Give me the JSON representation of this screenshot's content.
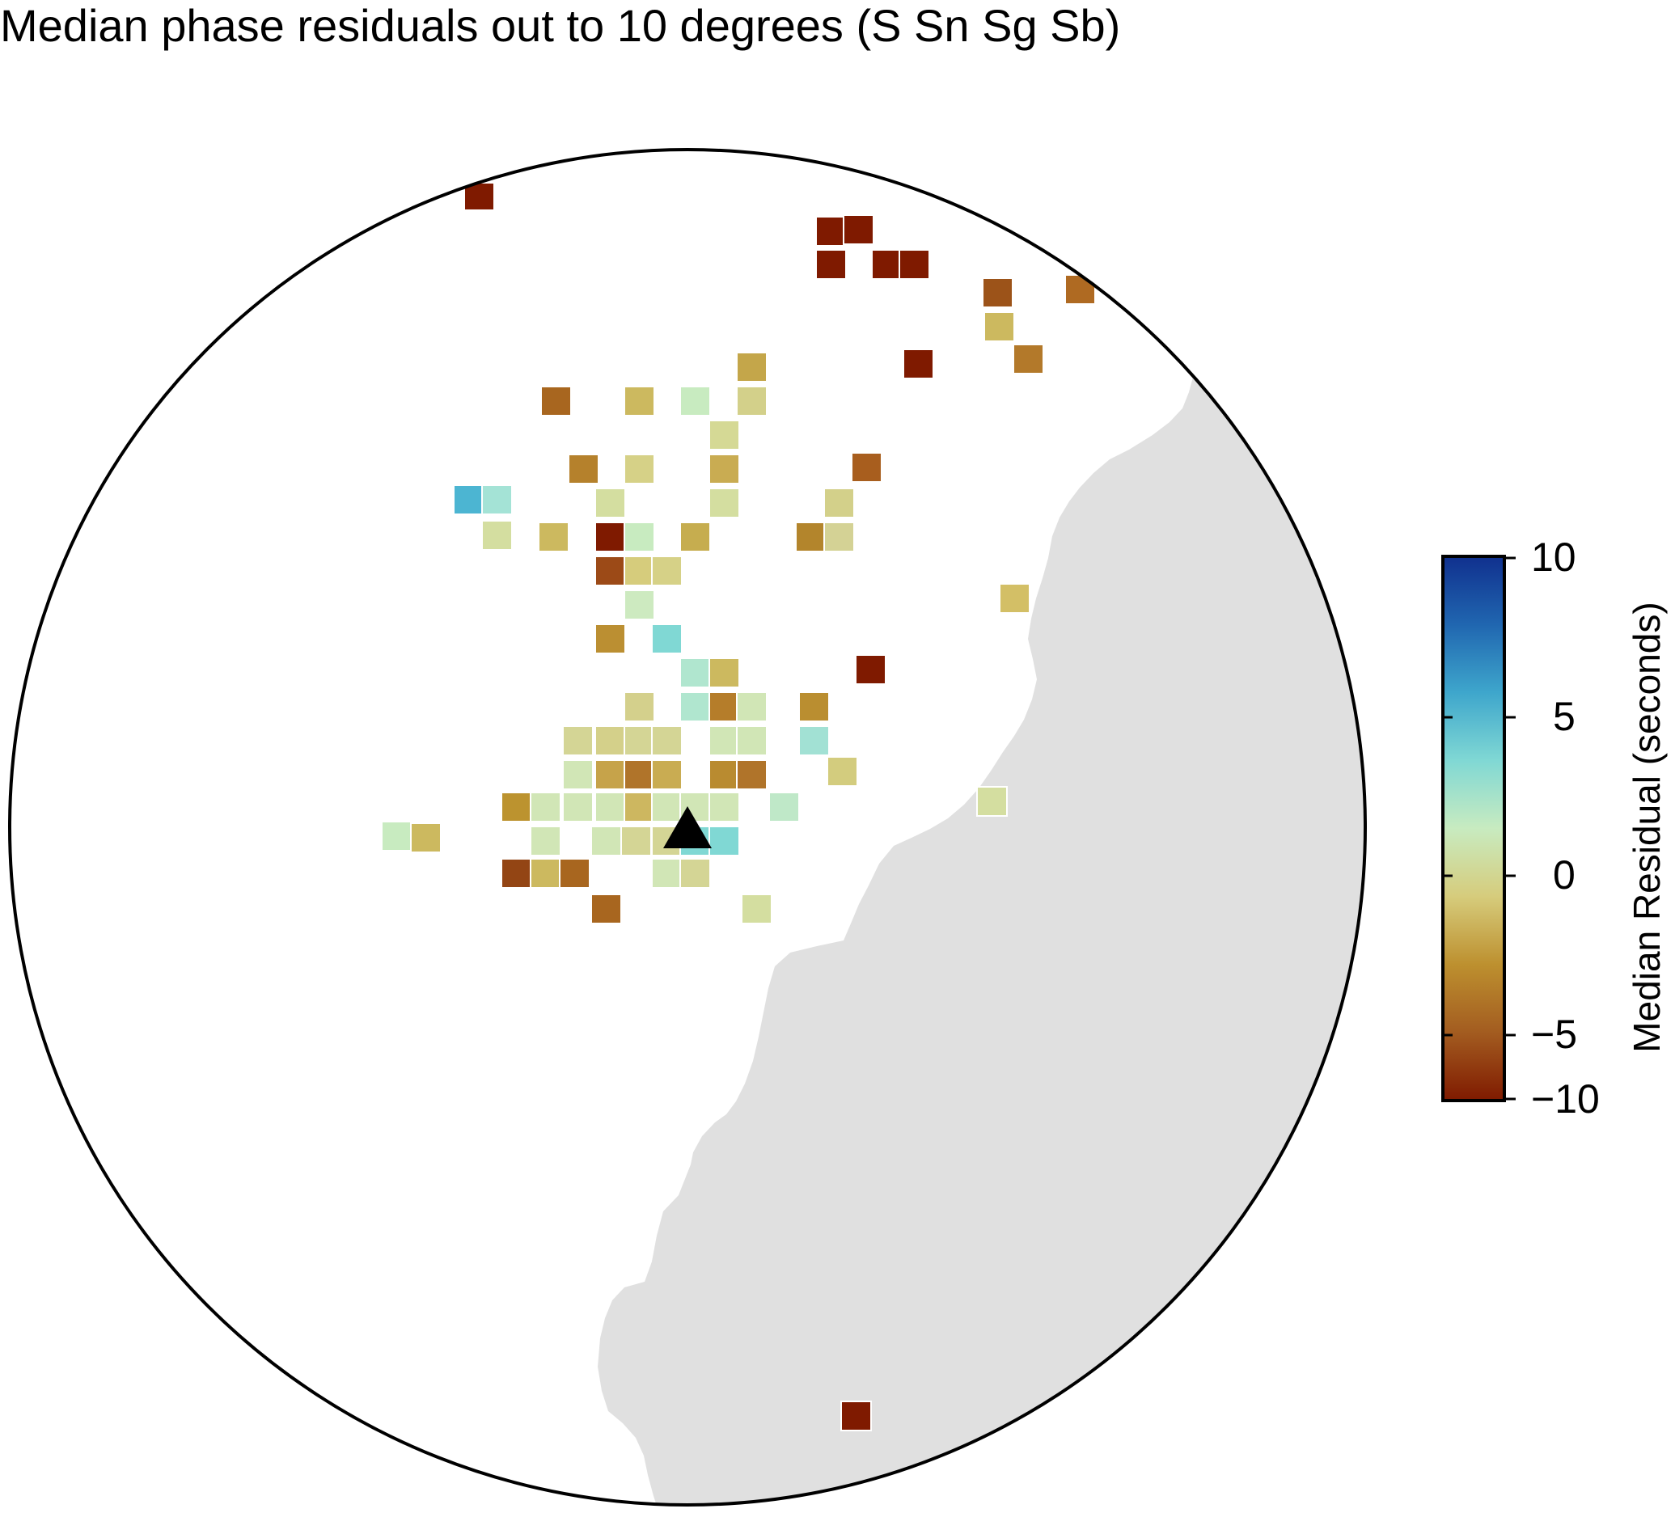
{
  "title": "Median phase residuals out to 10 degrees (S Sn Sg Sb)",
  "map": {
    "projection": "azimuthal (circular), radius 10 degrees",
    "land_color": "#e0e0e0",
    "ocean_color": "#ffffff",
    "station_marker": "triangle",
    "station_color": "#000000"
  },
  "colorbar": {
    "label": "Median Residual (seconds)",
    "min": -10,
    "max": 10,
    "ticks": [
      {
        "value": 10,
        "label": "10"
      },
      {
        "value": 5,
        "label": "5"
      },
      {
        "value": 0,
        "label": "0"
      },
      {
        "value": -5,
        "label": "−5"
      },
      {
        "value": -10,
        "label": "−10"
      }
    ],
    "stops": [
      {
        "value": -10,
        "color": "#7f1a00"
      },
      {
        "value": -7.5,
        "color": "#a35c20"
      },
      {
        "value": -5,
        "color": "#bd902f"
      },
      {
        "value": -2.5,
        "color": "#d6cc7c"
      },
      {
        "value": 0,
        "color": "#c8ebc0"
      },
      {
        "value": 2.5,
        "color": "#80d8d4"
      },
      {
        "value": 5,
        "color": "#3ea6cc"
      },
      {
        "value": 7.5,
        "color": "#2066b0"
      },
      {
        "value": 10,
        "color": "#10308e"
      }
    ]
  }
}
